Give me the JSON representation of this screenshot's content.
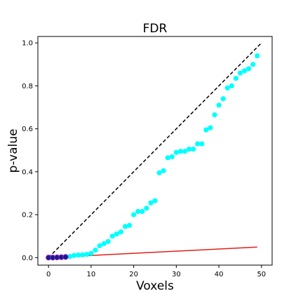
{
  "chart_data": {
    "type": "scatter",
    "title": "FDR",
    "xlabel": "Voxels",
    "ylabel": "p-value",
    "xlim": [
      -2.5,
      52.5
    ],
    "ylim": [
      -0.035,
      1.03
    ],
    "xticks": [
      0,
      10,
      20,
      30,
      40,
      50
    ],
    "yticks": [
      0.0,
      0.2,
      0.4,
      0.6,
      0.8,
      1.0
    ],
    "xtick_labels": [
      "0",
      "10",
      "20",
      "30",
      "40",
      "50"
    ],
    "ytick_labels": [
      "0.0",
      "0.2",
      "0.4",
      "0.6",
      "0.8",
      "1.0"
    ],
    "grid": false,
    "legend": "none",
    "series": [
      {
        "kind": "scatter",
        "color": "#00ffff",
        "x": [
          0,
          1,
          2,
          3,
          4,
          5,
          6,
          7,
          8,
          9,
          10,
          11,
          12,
          13,
          14,
          15,
          16,
          17,
          18,
          19,
          20,
          21,
          22,
          23,
          24,
          25,
          26,
          27,
          28,
          29,
          30,
          31,
          32,
          33,
          34,
          35,
          36,
          37,
          38,
          39,
          40,
          41,
          42,
          43,
          44,
          45,
          46,
          47,
          48,
          49
        ],
        "y": [
          0.0,
          0.0,
          0.001,
          0.002,
          0.003,
          0.005,
          0.01,
          0.012,
          0.013,
          0.015,
          0.02,
          0.035,
          0.055,
          0.065,
          0.075,
          0.1,
          0.11,
          0.12,
          0.145,
          0.15,
          0.2,
          0.215,
          0.215,
          0.23,
          0.255,
          0.265,
          0.395,
          0.405,
          0.465,
          0.47,
          0.49,
          0.495,
          0.495,
          0.505,
          0.505,
          0.53,
          0.53,
          0.595,
          0.605,
          0.665,
          0.71,
          0.74,
          0.79,
          0.8,
          0.835,
          0.86,
          0.87,
          0.88,
          0.9,
          0.94
        ]
      },
      {
        "kind": "scatter",
        "color": "#1a1a80",
        "edgecolor": "#8b2be2",
        "x": [
          0,
          1,
          2,
          3,
          4
        ],
        "y": [
          0.0,
          0.0,
          0.001,
          0.002,
          0.003
        ]
      },
      {
        "kind": "line",
        "style": "dashed",
        "color": "#000000",
        "x": [
          0,
          50
        ],
        "y": [
          0.0,
          1.0
        ]
      },
      {
        "kind": "line",
        "style": "solid",
        "color": "#e0201a",
        "x": [
          0,
          49
        ],
        "y": [
          0.0,
          0.049
        ]
      }
    ]
  }
}
